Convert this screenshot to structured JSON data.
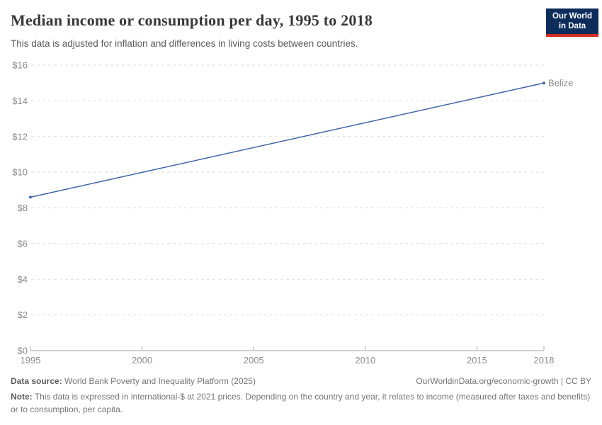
{
  "header": {
    "title": "Median income or consumption per day, 1995 to 2018",
    "subtitle": "This data is adjusted for inflation and differences in living costs between countries.",
    "logo": {
      "line1": "Our World",
      "line2": "in Data",
      "bg_color": "#0c2d5b",
      "bar_color": "#d12c24"
    }
  },
  "chart_data": {
    "type": "line",
    "title": "Median income or consumption per day, 1995 to 2018",
    "xlabel": "",
    "ylabel": "",
    "xlim": [
      1995,
      2018
    ],
    "ylim": [
      0,
      16
    ],
    "x_ticks": [
      1995,
      2000,
      2005,
      2010,
      2015,
      2018
    ],
    "y_ticks": [
      0,
      2,
      4,
      6,
      8,
      10,
      12,
      14,
      16
    ],
    "y_tick_prefix": "$",
    "grid": "horizontal-dashed",
    "legend_position": "series-end-label",
    "series": [
      {
        "name": "Belize",
        "color": "#4165a5",
        "x": [
          1995,
          2018
        ],
        "y": [
          8.6,
          15.0
        ],
        "endpoint_markers": true
      }
    ]
  },
  "footer": {
    "source_label": "Data source:",
    "source_value": " World Bank Poverty and Inequality Platform (2025)",
    "citation": "OurWorldinData.org/economic-growth | CC BY",
    "note_label": "Note:",
    "note_text": " This data is expressed in international-$ at 2021 prices. Depending on the country and year, it relates to income (measured after taxes and benefits) or to consumption, per capita."
  },
  "colors": {
    "line": "#4165a5",
    "gridline": "#dedede",
    "axis": "#a5a5a5",
    "tick_label": "#8b8b8b",
    "title": "#383838",
    "subtitle": "#5b5b5b",
    "footer_text": "#757575"
  }
}
